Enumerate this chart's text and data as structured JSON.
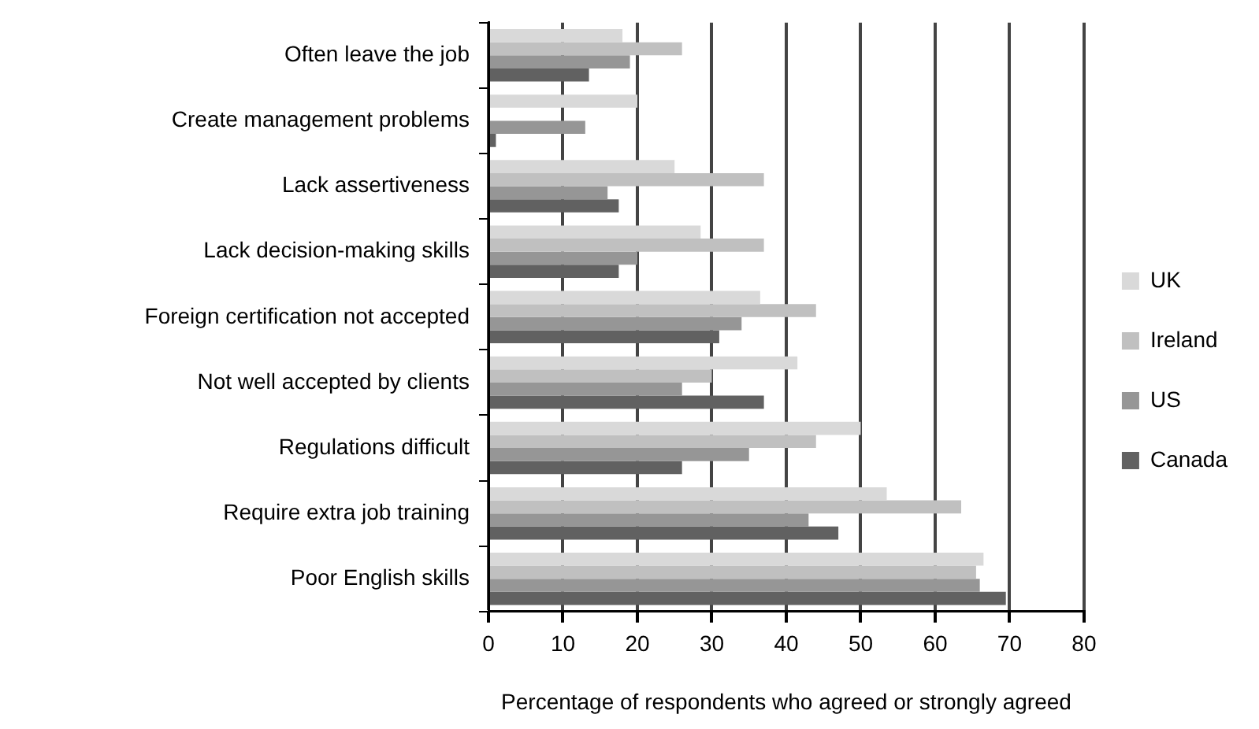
{
  "chart_data": {
    "type": "bar",
    "orientation": "horizontal",
    "xlabel": "Percentage of respondents who agreed or strongly agreed",
    "categories": [
      "Often leave the job",
      "Create management problems",
      "Lack assertiveness",
      "Lack decision-making skills",
      "Foreign certification not accepted",
      "Not well accepted by clients",
      "Regulations difficult",
      "Require extra job training",
      "Poor English skills"
    ],
    "series": [
      {
        "name": "UK",
        "color": "#d9d9d9",
        "values": [
          18,
          20,
          25,
          28.5,
          36.5,
          41.5,
          50,
          53.5,
          66.5
        ]
      },
      {
        "name": "Ireland",
        "color": "#c0c0c0",
        "values": [
          26,
          0,
          37,
          37,
          44,
          30,
          44,
          63.5,
          65.5
        ]
      },
      {
        "name": "US",
        "color": "#969696",
        "values": [
          19,
          13,
          16,
          20,
          34,
          26,
          35,
          43,
          66
        ]
      },
      {
        "name": "Canada",
        "color": "#616161",
        "values": [
          13.5,
          1,
          17.5,
          17.5,
          31,
          37,
          26,
          47,
          69.5
        ]
      }
    ],
    "xlim": [
      0,
      80
    ],
    "xticks": [
      0,
      10,
      20,
      30,
      40,
      50,
      60,
      70,
      80
    ],
    "grid": "x",
    "legend": "right"
  }
}
